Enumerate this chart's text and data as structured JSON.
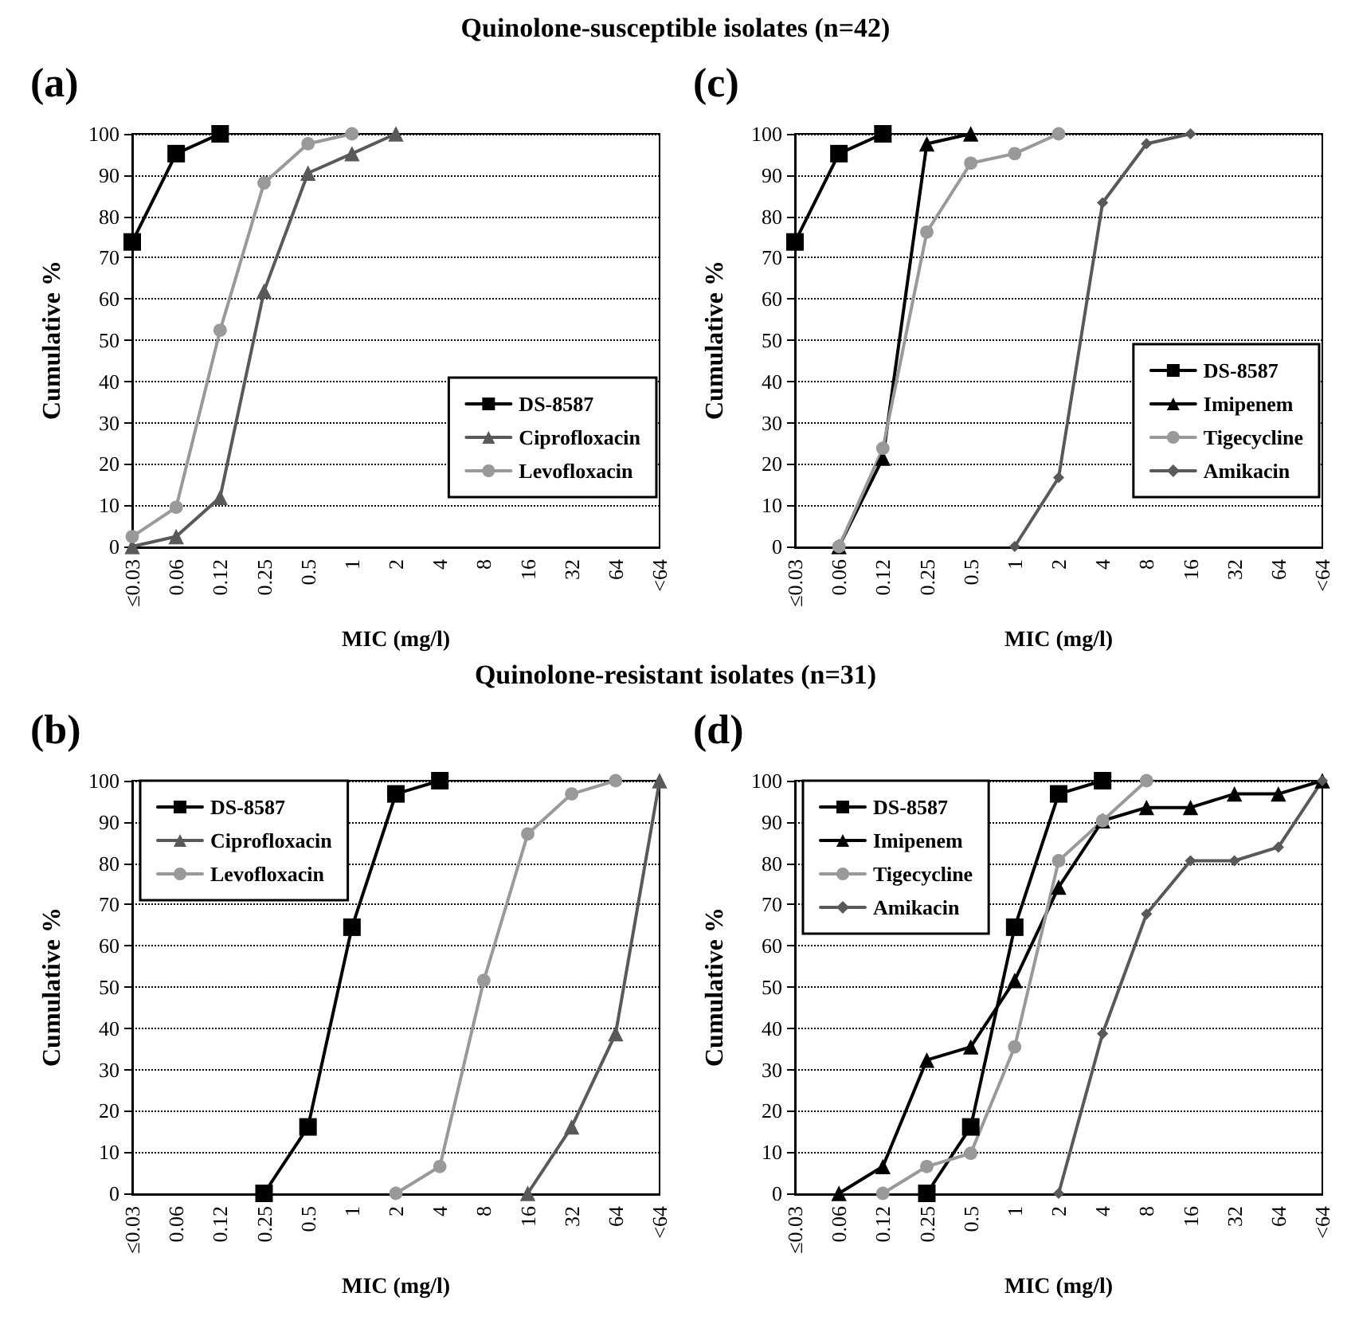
{
  "chart_data": [
    {
      "type": "line",
      "title": "(a)",
      "annotations": [
        "Quinolone-susceptible isolates (n=42)"
      ],
      "xlabel": "MIC (mg/l)",
      "ylabel": "Cumulative %",
      "categories": [
        "≤0.03",
        "0.06",
        "0.12",
        "0.25",
        "0.5",
        "1",
        "2",
        "4",
        "8",
        "16",
        "32",
        "64",
        "<64"
      ],
      "ylim": [
        0,
        100
      ],
      "yticks": [
        0,
        10,
        20,
        30,
        40,
        50,
        60,
        70,
        80,
        90,
        100
      ],
      "grid": "y",
      "legend": "bottom right",
      "series": [
        {
          "name": "DS-8587",
          "color": "#000000",
          "marker": "square",
          "values": [
            73.8,
            95.2,
            100,
            null,
            null,
            null,
            null,
            null,
            null,
            null,
            null,
            null,
            null
          ]
        },
        {
          "name": "Ciprofloxacin",
          "color": "#595959",
          "marker": "triangle",
          "values": [
            0,
            2.4,
            11.9,
            61.9,
            90.5,
            95.2,
            100,
            null,
            null,
            null,
            null,
            null,
            null
          ]
        },
        {
          "name": "Levofloxacin",
          "color": "#999999",
          "marker": "circle",
          "values": [
            2.4,
            9.5,
            52.4,
            88.1,
            97.6,
            100,
            null,
            null,
            null,
            null,
            null,
            null,
            null
          ]
        }
      ]
    },
    {
      "type": "line",
      "title": "(c)",
      "xlabel": "MIC (mg/l)",
      "ylabel": "Cumulative %",
      "categories": [
        "≤0.03",
        "0.06",
        "0.12",
        "0.25",
        "0.5",
        "1",
        "2",
        "4",
        "8",
        "16",
        "32",
        "64",
        "<64"
      ],
      "ylim": [
        0,
        100
      ],
      "yticks": [
        0,
        10,
        20,
        30,
        40,
        50,
        60,
        70,
        80,
        90,
        100
      ],
      "grid": "y",
      "legend": "bottom right",
      "series": [
        {
          "name": "DS-8587",
          "color": "#000000",
          "marker": "square",
          "values": [
            73.8,
            95.2,
            100,
            null,
            null,
            null,
            null,
            null,
            null,
            null,
            null,
            null,
            null
          ]
        },
        {
          "name": "Imipenem",
          "color": "#000000",
          "marker": "triangle",
          "values": [
            null,
            0,
            21.4,
            97.6,
            100,
            null,
            null,
            null,
            null,
            null,
            null,
            null,
            null
          ]
        },
        {
          "name": "Tigecycline",
          "color": "#999999",
          "marker": "circle",
          "values": [
            null,
            0,
            23.8,
            76.2,
            92.9,
            95.2,
            100,
            null,
            null,
            null,
            null,
            null,
            null
          ]
        },
        {
          "name": "Amikacin",
          "color": "#595959",
          "marker": "diamond",
          "values": [
            null,
            null,
            null,
            null,
            null,
            0,
            16.7,
            83.3,
            97.6,
            100,
            null,
            null,
            null
          ]
        }
      ]
    },
    {
      "type": "line",
      "title": "(b)",
      "annotations": [
        "Quinolone-resistant isolates (n=31)"
      ],
      "xlabel": "MIC (mg/l)",
      "ylabel": "Cumulative %",
      "categories": [
        "≤0.03",
        "0.06",
        "0.12",
        "0.25",
        "0.5",
        "1",
        "2",
        "4",
        "8",
        "16",
        "32",
        "64",
        "<64"
      ],
      "ylim": [
        0,
        100
      ],
      "yticks": [
        0,
        10,
        20,
        30,
        40,
        50,
        60,
        70,
        80,
        90,
        100
      ],
      "grid": "y",
      "legend": "top left",
      "series": [
        {
          "name": "DS-8587",
          "color": "#000000",
          "marker": "square",
          "values": [
            null,
            null,
            null,
            0,
            16.1,
            64.5,
            96.8,
            100,
            null,
            null,
            null,
            null,
            null
          ]
        },
        {
          "name": "Ciprofloxacin",
          "color": "#595959",
          "marker": "triangle",
          "values": [
            null,
            null,
            null,
            null,
            null,
            null,
            null,
            null,
            null,
            0,
            16.1,
            38.7,
            100
          ]
        },
        {
          "name": "Levofloxacin",
          "color": "#999999",
          "marker": "circle",
          "values": [
            null,
            null,
            null,
            null,
            null,
            null,
            0,
            6.5,
            51.6,
            87.1,
            96.8,
            100,
            null
          ]
        }
      ]
    },
    {
      "type": "line",
      "title": "(d)",
      "xlabel": "MIC (mg/l)",
      "ylabel": "Cumulative %",
      "categories": [
        "≤0.03",
        "0.06",
        "0.12",
        "0.25",
        "0.5",
        "1",
        "2",
        "4",
        "8",
        "16",
        "32",
        "64",
        "<64"
      ],
      "ylim": [
        0,
        100
      ],
      "yticks": [
        0,
        10,
        20,
        30,
        40,
        50,
        60,
        70,
        80,
        90,
        100
      ],
      "grid": "y",
      "legend": "top left",
      "series": [
        {
          "name": "DS-8587",
          "color": "#000000",
          "marker": "square",
          "values": [
            null,
            null,
            null,
            0,
            16.1,
            64.5,
            96.8,
            100,
            null,
            null,
            null,
            null,
            null
          ]
        },
        {
          "name": "Imipenem",
          "color": "#000000",
          "marker": "triangle",
          "values": [
            null,
            0,
            6.5,
            32.3,
            35.5,
            51.6,
            74.2,
            90.3,
            93.5,
            93.5,
            96.8,
            96.8,
            100
          ]
        },
        {
          "name": "Tigecycline",
          "color": "#999999",
          "marker": "circle",
          "values": [
            null,
            null,
            0,
            6.5,
            9.7,
            35.5,
            80.6,
            90.3,
            100,
            null,
            null,
            null,
            null
          ]
        },
        {
          "name": "Amikacin",
          "color": "#595959",
          "marker": "diamond",
          "values": [
            null,
            null,
            null,
            null,
            null,
            null,
            0,
            38.7,
            67.7,
            80.6,
            80.6,
            83.9,
            100
          ]
        }
      ]
    }
  ]
}
